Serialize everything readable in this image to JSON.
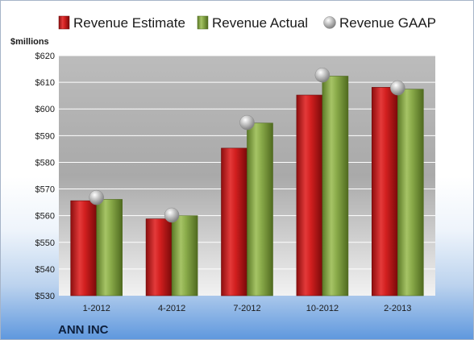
{
  "chart_data": {
    "type": "bar",
    "title": "",
    "company": "ANN INC",
    "ylabel": "$millions",
    "categories": [
      "1-2012",
      "4-2012",
      "7-2012",
      "10-2012",
      "2-2013"
    ],
    "series": [
      {
        "name": "Revenue Estimate",
        "kind": "bar",
        "color": "#cc1f1f",
        "values": [
          565.6,
          558.8,
          585.3,
          605.2,
          608.1
        ]
      },
      {
        "name": "Revenue Actual",
        "kind": "bar",
        "color": "#8aab4a",
        "values": [
          566.1,
          560.0,
          594.7,
          612.3,
          607.4
        ]
      },
      {
        "name": "Revenue GAAP",
        "kind": "marker",
        "color": "#a9a9a9",
        "values": [
          566.8,
          560.2,
          594.9,
          612.7,
          607.9
        ]
      }
    ],
    "ylim": [
      530,
      620
    ],
    "yticks": [
      530,
      540,
      550,
      560,
      570,
      580,
      590,
      600,
      610,
      620
    ],
    "ytick_format": "${v}",
    "grid": true,
    "legend_position": "top"
  }
}
